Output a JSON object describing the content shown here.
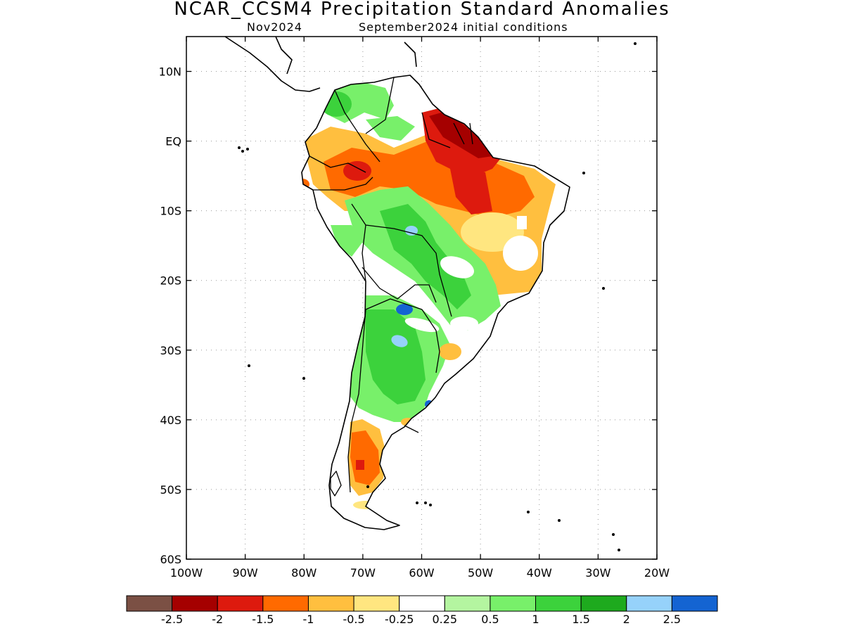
{
  "header": {
    "title": "NCAR_CCSM4 Precipitation Standard Anomalies",
    "valid_month": "Nov2024",
    "initial_conditions": "September2024 initial conditions"
  },
  "map": {
    "lat_labels": [
      "10N",
      "EQ",
      "10S",
      "20S",
      "30S",
      "40S",
      "50S",
      "60S"
    ],
    "lon_labels": [
      "100W",
      "90W",
      "80W",
      "70W",
      "60W",
      "50W",
      "40W",
      "30W",
      "20W"
    ],
    "lat_range": [
      -60,
      15
    ],
    "lon_range": [
      -100,
      -20
    ],
    "gridlines": true,
    "region": "South America"
  },
  "legend": {
    "colors": [
      "#7b5044",
      "#a50000",
      "#dd1a0e",
      "#ff6a00",
      "#ffbf3f",
      "#ffe680",
      "#ffffff",
      "#b4f5a0",
      "#78f06a",
      "#3cd23c",
      "#1eaa1e",
      "#96d2fa",
      "#1464d2"
    ],
    "labels": [
      "-2.5",
      "-2",
      "-1.5",
      "-1",
      "-0.5",
      "-0.25",
      "0.25",
      "0.5",
      "1",
      "1.5",
      "2",
      "2.5"
    ]
  }
}
